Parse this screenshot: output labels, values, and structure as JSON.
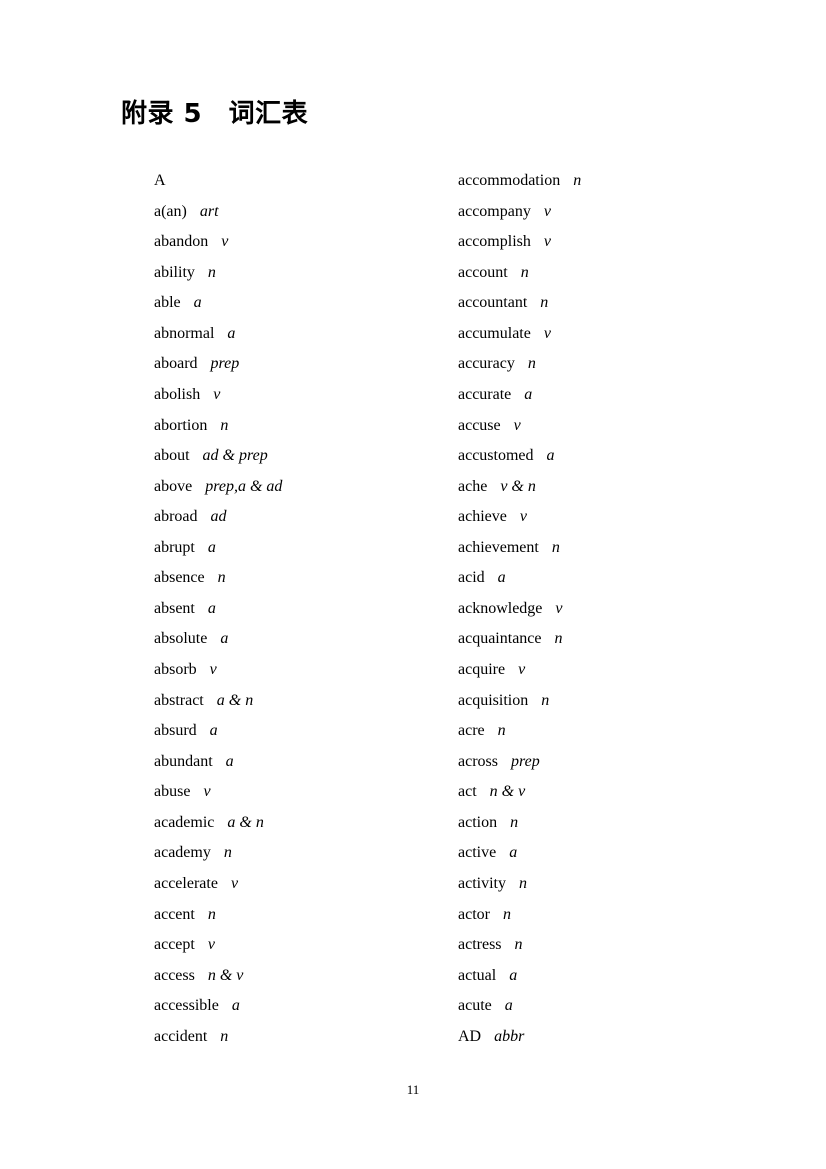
{
  "page": {
    "title": "附录 5　词汇表",
    "page_number": "11"
  },
  "vocabulary": {
    "columns": [
      {
        "entries": [
          {
            "word": "A",
            "pos": ""
          },
          {
            "word": "a(an)",
            "pos": "art"
          },
          {
            "word": "abandon",
            "pos": "v"
          },
          {
            "word": "ability",
            "pos": "n"
          },
          {
            "word": "able",
            "pos": "a"
          },
          {
            "word": "abnormal",
            "pos": "a"
          },
          {
            "word": "aboard",
            "pos": "prep"
          },
          {
            "word": "abolish",
            "pos": "v"
          },
          {
            "word": "abortion",
            "pos": "n"
          },
          {
            "word": "about",
            "pos": "ad & prep"
          },
          {
            "word": "above",
            "pos": "prep,a & ad"
          },
          {
            "word": "abroad",
            "pos": "ad"
          },
          {
            "word": "abrupt",
            "pos": "a"
          },
          {
            "word": "absence",
            "pos": "n"
          },
          {
            "word": "absent",
            "pos": "a"
          },
          {
            "word": "absolute",
            "pos": "a"
          },
          {
            "word": "absorb",
            "pos": "v"
          },
          {
            "word": "abstract",
            "pos": "a & n"
          },
          {
            "word": "absurd",
            "pos": "a"
          },
          {
            "word": "abundant",
            "pos": "a"
          },
          {
            "word": "abuse",
            "pos": "v"
          },
          {
            "word": "academic",
            "pos": "a & n"
          },
          {
            "word": "academy",
            "pos": "n"
          },
          {
            "word": "accelerate",
            "pos": "v"
          },
          {
            "word": "accent",
            "pos": "n"
          },
          {
            "word": "accept",
            "pos": "v"
          },
          {
            "word": "access",
            "pos": "n & v"
          },
          {
            "word": "accessible",
            "pos": "a"
          },
          {
            "word": "accident",
            "pos": "n"
          }
        ]
      },
      {
        "entries": [
          {
            "word": "accommodation",
            "pos": "n"
          },
          {
            "word": "accompany",
            "pos": "v"
          },
          {
            "word": "accomplish",
            "pos": "v"
          },
          {
            "word": "account",
            "pos": "n"
          },
          {
            "word": "accountant",
            "pos": "n"
          },
          {
            "word": "accumulate",
            "pos": "v"
          },
          {
            "word": "accuracy",
            "pos": "n"
          },
          {
            "word": "accurate",
            "pos": "a"
          },
          {
            "word": "accuse",
            "pos": "v"
          },
          {
            "word": "accustomed",
            "pos": "a"
          },
          {
            "word": "ache",
            "pos": "v & n"
          },
          {
            "word": "achieve",
            "pos": "v"
          },
          {
            "word": "achievement",
            "pos": "n"
          },
          {
            "word": "acid",
            "pos": "a"
          },
          {
            "word": "acknowledge",
            "pos": "v"
          },
          {
            "word": "acquaintance",
            "pos": "n"
          },
          {
            "word": "acquire",
            "pos": "v"
          },
          {
            "word": "acquisition",
            "pos": "n"
          },
          {
            "word": "acre",
            "pos": "n"
          },
          {
            "word": "across",
            "pos": "prep"
          },
          {
            "word": "act",
            "pos": "n & v"
          },
          {
            "word": "action",
            "pos": "n"
          },
          {
            "word": "active",
            "pos": "a"
          },
          {
            "word": "activity",
            "pos": "n"
          },
          {
            "word": "actor",
            "pos": "n"
          },
          {
            "word": "actress",
            "pos": "n"
          },
          {
            "word": "actual",
            "pos": "a"
          },
          {
            "word": "acute",
            "pos": "a"
          },
          {
            "word": "AD",
            "pos": "abbr"
          }
        ]
      }
    ]
  }
}
